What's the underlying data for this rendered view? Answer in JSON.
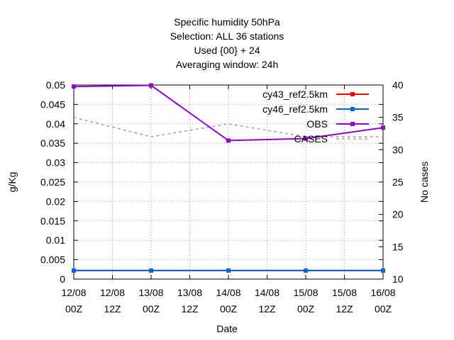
{
  "chart_data": {
    "type": "line",
    "title_lines": [
      "Specific humidity 50hPa",
      "Selection: ALL      36 stations",
      "Used {00} + 24",
      "Averaging window: 24h"
    ],
    "xlabel": "Date",
    "ylabel": "g/Kg",
    "y2label": "No cases",
    "x_ticks": [
      [
        "12/08",
        "00Z"
      ],
      [
        "12/08",
        "12Z"
      ],
      [
        "13/08",
        "00Z"
      ],
      [
        "13/08",
        "12Z"
      ],
      [
        "14/08",
        "00Z"
      ],
      [
        "14/08",
        "12Z"
      ],
      [
        "15/08",
        "00Z"
      ],
      [
        "15/08",
        "12Z"
      ],
      [
        "16/08",
        "00Z"
      ]
    ],
    "x_points": [
      0,
      2,
      4,
      6,
      8
    ],
    "ylim": [
      0,
      0.05
    ],
    "y_ticks": [
      "0",
      "0.005",
      "0.01",
      "0.015",
      "0.02",
      "0.025",
      "0.03",
      "0.035",
      "0.04",
      "0.045",
      "0.05"
    ],
    "y2lim": [
      10,
      40
    ],
    "y2_ticks": [
      "10",
      "15",
      "20",
      "25",
      "30",
      "35",
      "40"
    ],
    "grid": true,
    "legend_position": "top-right",
    "series": [
      {
        "name": "cy43_ref2.5km",
        "axis": "y",
        "color": "#ff0000",
        "style": "line-points",
        "values": [
          0.0022,
          0.0022,
          0.0022,
          0.0022,
          0.0022
        ]
      },
      {
        "name": "cy46_ref2.5km",
        "axis": "y",
        "color": "#0066dd",
        "style": "line-points",
        "values": [
          0.0022,
          0.0022,
          0.0022,
          0.0022,
          0.0022
        ]
      },
      {
        "name": "OBS",
        "axis": "y",
        "color": "#9400d3",
        "style": "line-points",
        "values": [
          0.0496,
          0.0499,
          0.0357,
          0.0362,
          0.039
        ]
      },
      {
        "name": "CASES",
        "axis": "y2",
        "color": "#a0a0a0",
        "style": "dashed",
        "values": [
          35,
          32,
          34,
          32,
          32
        ]
      }
    ]
  }
}
